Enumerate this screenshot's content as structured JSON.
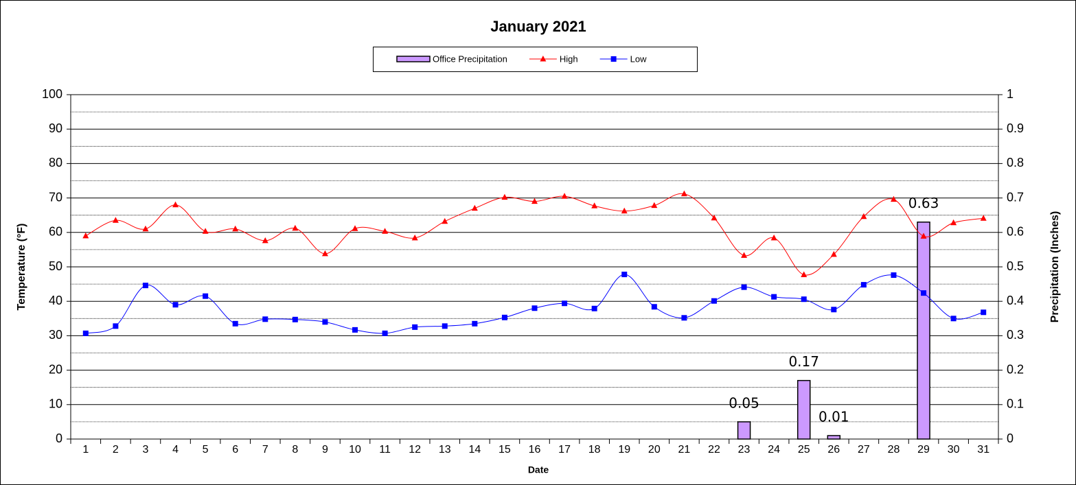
{
  "chart_data": {
    "type": "combo",
    "title": "January 2021",
    "x_label": "Date",
    "y_label": "Temperature (°F)",
    "y2_label": "Precipitation (Inches)",
    "categories": [
      "1",
      "2",
      "3",
      "4",
      "5",
      "6",
      "7",
      "8",
      "9",
      "10",
      "11",
      "12",
      "13",
      "14",
      "15",
      "16",
      "17",
      "18",
      "19",
      "20",
      "21",
      "22",
      "23",
      "24",
      "25",
      "26",
      "27",
      "28",
      "29",
      "30",
      "31"
    ],
    "series": [
      {
        "name": "Office Precipitation",
        "type": "bar",
        "axis": "y2",
        "color": "#cc99ff",
        "values": [
          0,
          0,
          0,
          0,
          0,
          0,
          0,
          0,
          0,
          0,
          0,
          0,
          0,
          0,
          0,
          0,
          0,
          0,
          0,
          0,
          0,
          0,
          0.05,
          0,
          0.17,
          0.01,
          0,
          0,
          0.63,
          0,
          0
        ]
      },
      {
        "name": "High",
        "type": "line",
        "color": "#ff0000",
        "marker": "triangle",
        "values": [
          59,
          63.5,
          61,
          68,
          60.3,
          61,
          57.6,
          61.2,
          53.8,
          61.1,
          60.3,
          58.4,
          63.2,
          67,
          70.2,
          69,
          70.5,
          67.7,
          66.2,
          67.8,
          71.2,
          64.2,
          53.3,
          58.4,
          47.7,
          53.6,
          64.6,
          69.6,
          58.9,
          62.8,
          64.1
        ]
      },
      {
        "name": "Low",
        "type": "line",
        "color": "#0000ff",
        "marker": "square",
        "values": [
          30.7,
          32.8,
          44.6,
          39,
          41.5,
          33.5,
          34.8,
          34.7,
          34,
          31.7,
          30.7,
          32.5,
          32.8,
          33.5,
          35.3,
          38,
          39.4,
          37.9,
          47.8,
          38.4,
          35.2,
          40.1,
          44.1,
          41.3,
          40.6,
          37.6,
          44.8,
          47.6,
          42.4,
          35,
          36.8
        ]
      }
    ],
    "ylim": [
      0,
      100
    ],
    "yticks": [
      0,
      10,
      20,
      30,
      40,
      50,
      60,
      70,
      80,
      90,
      100
    ],
    "y2lim": [
      0,
      1
    ],
    "y2ticks": [
      0,
      0.1,
      0.2,
      0.3,
      0.4,
      0.5,
      0.6,
      0.7,
      0.8,
      0.9,
      1
    ],
    "grid": true,
    "legend": "top"
  }
}
